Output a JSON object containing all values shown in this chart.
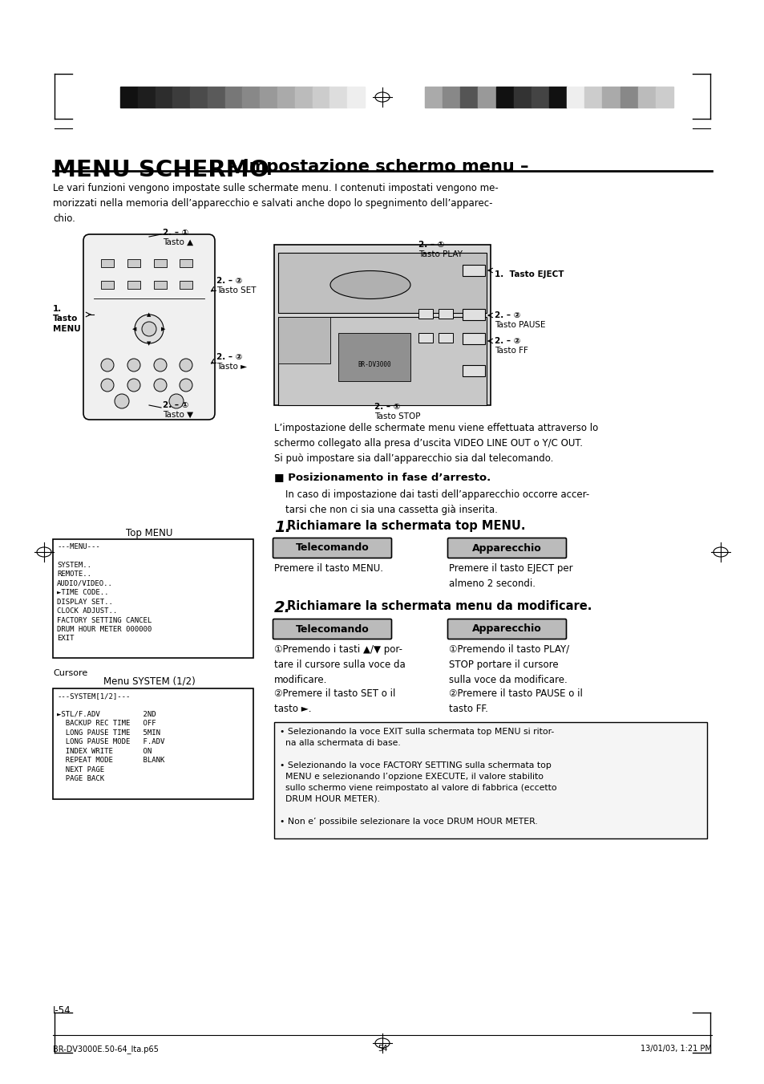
{
  "bg_color": "#ffffff",
  "title_bold": "MENU SCHERMO",
  "title_subtitle": " – Impostazione schermo menu –",
  "body_text": "Le vari funzioni vengono impostate sulle schermate menu. I contenuti impostati vengono me-\nmorizzati nella memoria dell’apparecchio e salvati anche dopo lo spegnimento dell’apparec-\nchio.",
  "section_header": "■ Posizionamento in fase d’arresto.",
  "section_body": "In caso di impostazione dai tasti dell’apparecchio occorre accer-\ntarsi che non ci sia una cassetta già inserita.",
  "step1_text": "Richiamare la schermata top MENU.",
  "step2_text": "Richiamare la schermata menu da modificare.",
  "telecomando_label": "Telecomando",
  "apparecchio_label": "Apparecchio",
  "step1_tel": "Premere il tasto MENU.",
  "step1_app": "Premere il tasto EJECT per\nalmeno 2 secondi.",
  "step2_tel_1": "①Premendo i tasti ▲/▼ por-\ntare il cursore sulla voce da\nmodificare.",
  "step2_tel_2": "②Premere il tasto SET o il\ntasto ►.",
  "step2_app_1": "①Premendo il tasto PLAY/\nSTOP portare il cursore\nsulla voce da modificare.",
  "step2_app_2": "②Premere il tasto PAUSE o il\ntasto FF.",
  "note1": "• Selezionando la voce EXIT sulla schermata top MENU si ritor-\n  na alla schermata di base.",
  "note2": "• Selezionando la voce FACTORY SETTING sulla schermata top\n  MENU e selezionando l’opzione EXECUTE, il valore stabilito\n  sullo schermo viene reimpostato al valore di fabbrica (eccetto\n  DRUM HOUR METER).",
  "note3": "• Non e’ possibile selezionare la voce DRUM HOUR METER.",
  "top_menu_title": "Top MENU",
  "top_menu_content": "---MENU---\n\nSYSTEM..\nREMOTE..\nAUDIO/VIDEO..\n►TIME CODE..\nDISPLAY SET..\nCLOCK ADJUST..\nFACTORY SETTING CANCEL\nDRUM HOUR METER 000000\nEXIT",
  "cursore_label": "Cursore",
  "menu_system_title": "Menu SYSTEM (1/2)",
  "menu_system_content": "---SYSTEM[1/2]---\n\n►STL/F.ADV          2ND\n  BACKUP REC TIME   OFF\n  LONG PAUSE TIME   5MIN\n  LONG PAUSE MODE   F.ADV\n  INDEX WRITE       ON\n  REPEAT MODE       BLANK\n  NEXT PAGE\n  PAGE BACK",
  "footer_left": "BR-DV3000E.50-64_Ita.p65",
  "footer_center": "54",
  "footer_right": "13/01/03, 1:21 PM",
  "page_num": "I-54",
  "expl_text": "L’impostazione delle schermate menu viene effettuata attraverso lo\nschermo collegato alla presa d’uscita VIDEO LINE OUT o Y/C OUT.\nSi può impostare sia dall’apparecchio sia dal telecomando.",
  "colors_left": [
    "#111111",
    "#1e1e1e",
    "#2d2d2d",
    "#3c3c3c",
    "#4b4b4b",
    "#5a5a5a",
    "#777777",
    "#888888",
    "#999999",
    "#aaaaaa",
    "#bbbbbb",
    "#cccccc",
    "#dddddd",
    "#eeeeee"
  ],
  "colors_right": [
    "#aaaaaa",
    "#888888",
    "#555555",
    "#999999",
    "#111111",
    "#333333",
    "#444444",
    "#111111",
    "#eeeeee",
    "#cccccc",
    "#aaaaaa",
    "#888888",
    "#bbbbbb",
    "#cccccc"
  ]
}
